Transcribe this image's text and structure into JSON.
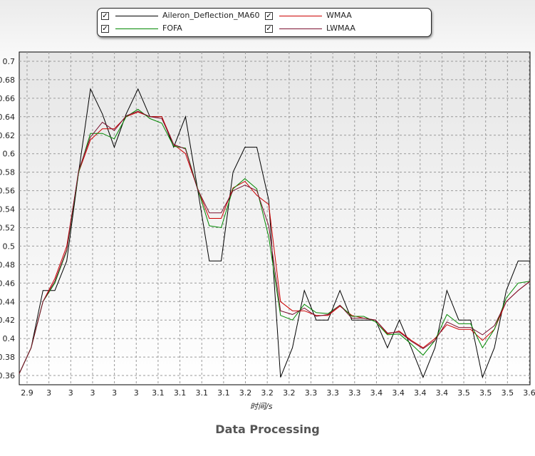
{
  "chart_data": {
    "type": "line",
    "title": "Data Processing",
    "xlabel": "时间/s",
    "ylabel": "",
    "ylim": [
      0.35,
      0.71
    ],
    "y_ticks": [
      0.36,
      0.38,
      0.4,
      0.42,
      0.44,
      0.46,
      0.48,
      0.5,
      0.52,
      0.54,
      0.56,
      0.58,
      0.6,
      0.62,
      0.64,
      0.66,
      0.68,
      0.7
    ],
    "x_tick_labels": [
      "2.9",
      "3",
      "3",
      "3",
      "3",
      "3",
      "3.1",
      "3.1",
      "3.1",
      "3.1",
      "3.2",
      "3.2",
      "3.2",
      "3.3",
      "3.3",
      "3.3",
      "3.4",
      "3.4",
      "3.4",
      "3.4",
      "3.5",
      "3.5",
      "3.5",
      "3.6"
    ],
    "grid": true,
    "legend_position": "top-center",
    "series": [
      {
        "name": "Aileron_Deflection_MA60",
        "color": "#000000",
        "values": [
          0.362,
          0.39,
          0.452,
          0.452,
          0.484,
          0.58,
          0.67,
          0.643,
          0.607,
          0.643,
          0.67,
          0.64,
          0.64,
          0.607,
          0.64,
          0.563,
          0.484,
          0.484,
          0.58,
          0.607,
          0.607,
          0.55,
          0.358,
          0.39,
          0.452,
          0.42,
          0.42,
          0.452,
          0.42,
          0.42,
          0.42,
          0.39,
          0.42,
          0.39,
          0.358,
          0.39,
          0.452,
          0.42,
          0.42,
          0.358,
          0.39,
          0.452,
          0.484,
          0.484
        ]
      },
      {
        "name": "WMAA",
        "color": "#cc0000",
        "values": [
          0.362,
          0.39,
          0.44,
          0.465,
          0.5,
          0.58,
          0.615,
          0.627,
          0.627,
          0.64,
          0.645,
          0.64,
          0.64,
          0.61,
          0.6,
          0.563,
          0.53,
          0.53,
          0.563,
          0.57,
          0.555,
          0.545,
          0.44,
          0.43,
          0.43,
          0.425,
          0.425,
          0.435,
          0.425,
          0.422,
          0.42,
          0.405,
          0.408,
          0.398,
          0.39,
          0.4,
          0.415,
          0.41,
          0.41,
          0.398,
          0.41,
          0.44,
          0.452,
          0.462
        ]
      },
      {
        "name": "FOFA",
        "color": "#008800",
        "values": [
          0.362,
          0.39,
          0.44,
          0.46,
          0.495,
          0.58,
          0.622,
          0.622,
          0.616,
          0.64,
          0.648,
          0.638,
          0.633,
          0.608,
          0.606,
          0.563,
          0.522,
          0.52,
          0.562,
          0.573,
          0.562,
          0.51,
          0.425,
          0.42,
          0.437,
          0.428,
          0.427,
          0.436,
          0.424,
          0.424,
          0.418,
          0.404,
          0.405,
          0.394,
          0.382,
          0.398,
          0.426,
          0.416,
          0.416,
          0.39,
          0.41,
          0.444,
          0.46,
          0.462
        ]
      },
      {
        "name": "LWMAA",
        "color": "#7a1030",
        "values": [
          0.362,
          0.39,
          0.44,
          0.462,
          0.496,
          0.582,
          0.618,
          0.634,
          0.625,
          0.641,
          0.646,
          0.64,
          0.638,
          0.61,
          0.605,
          0.562,
          0.536,
          0.536,
          0.56,
          0.566,
          0.56,
          0.522,
          0.43,
          0.426,
          0.433,
          0.424,
          0.426,
          0.436,
          0.422,
          0.422,
          0.42,
          0.406,
          0.407,
          0.397,
          0.389,
          0.398,
          0.418,
          0.412,
          0.412,
          0.404,
          0.414,
          0.44,
          0.452,
          0.462
        ]
      }
    ]
  },
  "legend": {
    "items": [
      {
        "label": "Aileron_Deflection_MA60",
        "color": "#000000",
        "checked": true
      },
      {
        "label": "WMAA",
        "color": "#cc0000",
        "checked": true
      },
      {
        "label": "FOFA",
        "color": "#008800",
        "checked": true
      },
      {
        "label": "LWMAA",
        "color": "#7a1030",
        "checked": true
      }
    ]
  }
}
